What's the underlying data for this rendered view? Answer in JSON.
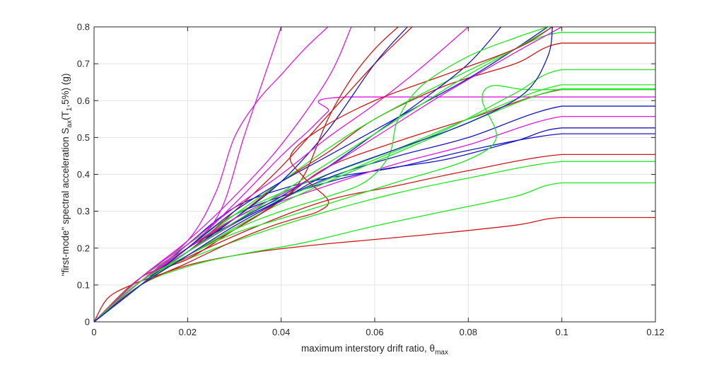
{
  "chart_data": {
    "type": "line",
    "xlabel": "maximum interstory drift ratio, θ",
    "xlabel_sub": "max",
    "ylabel_parts": [
      "\"first-mode\" spectral acceleration S",
      "ax",
      "(T",
      "1",
      ",5%) (g)"
    ],
    "xlim": [
      0,
      0.12
    ],
    "ylim": [
      0,
      0.8
    ],
    "xticks": [
      "0",
      "0.02",
      "0.04",
      "0.06",
      "0.08",
      "0.1",
      "0.12"
    ],
    "yticks": [
      "0",
      "0.1",
      "0.2",
      "0.3",
      "0.4",
      "0.5",
      "0.6",
      "0.7",
      "0.8"
    ],
    "grid": true,
    "colors": {
      "red": "#d01818",
      "green": "#1ee81e",
      "blue": "#1818c8",
      "magenta": "#e018e0",
      "grid": "#e3e3e3",
      "axis": "#262626"
    },
    "series": [
      {
        "color": "red",
        "x": [
          0,
          0.003,
          0.008,
          0.014,
          0.022,
          0.035,
          0.05,
          0.07,
          0.09,
          0.1,
          0.12
        ],
        "y": [
          0,
          0.065,
          0.1,
          0.128,
          0.16,
          0.19,
          0.212,
          0.235,
          0.262,
          0.283,
          0.283
        ]
      },
      {
        "color": "green",
        "x": [
          0,
          0.01,
          0.02,
          0.03,
          0.045,
          0.06,
          0.075,
          0.09,
          0.1,
          0.12
        ],
        "y": [
          0,
          0.1,
          0.15,
          0.18,
          0.215,
          0.26,
          0.3,
          0.34,
          0.377,
          0.377
        ]
      },
      {
        "color": "green",
        "x": [
          0,
          0.01,
          0.02,
          0.035,
          0.05,
          0.065,
          0.08,
          0.1,
          0.12
        ],
        "y": [
          0,
          0.11,
          0.17,
          0.24,
          0.3,
          0.35,
          0.39,
          0.435,
          0.435
        ]
      },
      {
        "color": "red",
        "x": [
          0,
          0.01,
          0.02,
          0.035,
          0.05,
          0.065,
          0.08,
          0.1,
          0.12
        ],
        "y": [
          0,
          0.11,
          0.175,
          0.26,
          0.33,
          0.37,
          0.41,
          0.454,
          0.454
        ]
      },
      {
        "color": "blue",
        "x": [
          0,
          0.01,
          0.02,
          0.03,
          0.04,
          0.05,
          0.065,
          0.08,
          0.1,
          0.12
        ],
        "y": [
          0,
          0.1,
          0.21,
          0.31,
          0.36,
          0.39,
          0.42,
          0.465,
          0.51,
          0.51
        ]
      },
      {
        "color": "blue",
        "x": [
          0,
          0.01,
          0.02,
          0.03,
          0.045,
          0.06,
          0.075,
          0.09,
          0.1,
          0.12
        ],
        "y": [
          0,
          0.1,
          0.2,
          0.29,
          0.36,
          0.41,
          0.44,
          0.49,
          0.526,
          0.526
        ]
      },
      {
        "color": "magenta",
        "x": [
          0,
          0.01,
          0.02,
          0.035,
          0.05,
          0.065,
          0.08,
          0.1,
          0.12
        ],
        "y": [
          0,
          0.11,
          0.19,
          0.3,
          0.37,
          0.43,
          0.48,
          0.557,
          0.557
        ]
      },
      {
        "color": "blue",
        "x": [
          0,
          0.01,
          0.02,
          0.035,
          0.05,
          0.065,
          0.08,
          0.1,
          0.12
        ],
        "y": [
          0,
          0.1,
          0.2,
          0.3,
          0.39,
          0.45,
          0.5,
          0.585,
          0.585
        ]
      },
      {
        "color": "magenta",
        "x": [
          0,
          0.01,
          0.02,
          0.03,
          0.04,
          0.046,
          0.05,
          0.054,
          0.12
        ],
        "y": [
          0,
          0.12,
          0.2,
          0.32,
          0.45,
          0.52,
          0.57,
          0.61,
          0.61
        ]
      },
      {
        "color": "red",
        "x": [
          0,
          0.01,
          0.02,
          0.03,
          0.04,
          0.05,
          0.065,
          0.08,
          0.1,
          0.12
        ],
        "y": [
          0,
          0.12,
          0.17,
          0.25,
          0.33,
          0.42,
          0.49,
          0.55,
          0.63,
          0.63
        ]
      },
      {
        "color": "green",
        "x": [
          0,
          0.01,
          0.02,
          0.035,
          0.05,
          0.065,
          0.08,
          0.1,
          0.12
        ],
        "y": [
          0,
          0.11,
          0.18,
          0.29,
          0.38,
          0.46,
          0.54,
          0.632,
          0.632
        ]
      },
      {
        "color": "green",
        "x": [
          0,
          0.01,
          0.02,
          0.03,
          0.04,
          0.05,
          0.065,
          0.08,
          0.1,
          0.12
        ],
        "y": [
          0,
          0.12,
          0.21,
          0.29,
          0.35,
          0.4,
          0.47,
          0.55,
          0.643,
          0.643
        ]
      },
      {
        "color": "green",
        "x": [
          0,
          0.01,
          0.02,
          0.03,
          0.045,
          0.06,
          0.075,
          0.09,
          0.1,
          0.12
        ],
        "y": [
          0,
          0.11,
          0.2,
          0.28,
          0.36,
          0.44,
          0.52,
          0.62,
          0.684,
          0.684
        ]
      },
      {
        "color": "red",
        "x": [
          0,
          0.01,
          0.02,
          0.03,
          0.04,
          0.05,
          0.06,
          0.075,
          0.09,
          0.1,
          0.12
        ],
        "y": [
          0,
          0.12,
          0.2,
          0.28,
          0.38,
          0.46,
          0.55,
          0.64,
          0.7,
          0.756,
          0.756
        ]
      },
      {
        "color": "green",
        "x": [
          0,
          0.01,
          0.02,
          0.03,
          0.04,
          0.05,
          0.06,
          0.075,
          0.09,
          0.1,
          0.12
        ],
        "y": [
          0,
          0.12,
          0.2,
          0.29,
          0.38,
          0.47,
          0.55,
          0.65,
          0.74,
          0.785,
          0.785
        ]
      },
      {
        "color": "magenta",
        "x": [
          0,
          0.01,
          0.02,
          0.026,
          0.03,
          0.035,
          0.04,
          0.045,
          0.05
        ],
        "y": [
          0,
          0.12,
          0.22,
          0.35,
          0.5,
          0.6,
          0.67,
          0.74,
          0.8
        ]
      },
      {
        "color": "magenta",
        "x": [
          0,
          0.01,
          0.02,
          0.027,
          0.032,
          0.036,
          0.04
        ],
        "y": [
          0,
          0.11,
          0.2,
          0.3,
          0.5,
          0.65,
          0.8
        ]
      },
      {
        "color": "magenta",
        "x": [
          0,
          0.01,
          0.02,
          0.03,
          0.04,
          0.05,
          0.055
        ],
        "y": [
          0,
          0.12,
          0.22,
          0.34,
          0.48,
          0.66,
          0.8
        ]
      },
      {
        "color": "red",
        "x": [
          0,
          0.01,
          0.02,
          0.03,
          0.04,
          0.05,
          0.06,
          0.068
        ],
        "y": [
          0,
          0.11,
          0.19,
          0.3,
          0.42,
          0.56,
          0.7,
          0.8
        ]
      },
      {
        "color": "blue",
        "x": [
          0,
          0.01,
          0.02,
          0.03,
          0.04,
          0.05,
          0.06,
          0.067
        ],
        "y": [
          0,
          0.1,
          0.19,
          0.28,
          0.38,
          0.52,
          0.7,
          0.8
        ]
      },
      {
        "color": "red",
        "x": [
          0,
          0.01,
          0.02,
          0.03,
          0.04,
          0.045,
          0.05,
          0.055,
          0.06,
          0.065
        ],
        "y": [
          0,
          0.1,
          0.18,
          0.25,
          0.33,
          0.4,
          0.55,
          0.66,
          0.74,
          0.8
        ]
      },
      {
        "color": "blue",
        "x": [
          0,
          0.01,
          0.02,
          0.03,
          0.04,
          0.05,
          0.06,
          0.07,
          0.08,
          0.087
        ],
        "y": [
          0,
          0.1,
          0.19,
          0.27,
          0.34,
          0.42,
          0.51,
          0.6,
          0.7,
          0.8
        ]
      },
      {
        "color": "magenta",
        "x": [
          0,
          0.01,
          0.02,
          0.03,
          0.04,
          0.05,
          0.06,
          0.07,
          0.08
        ],
        "y": [
          0,
          0.11,
          0.21,
          0.31,
          0.4,
          0.5,
          0.59,
          0.69,
          0.8
        ]
      },
      {
        "color": "magenta",
        "x": [
          0,
          0.01,
          0.02,
          0.03,
          0.045,
          0.06,
          0.075,
          0.09,
          0.1
        ],
        "y": [
          0,
          0.11,
          0.2,
          0.28,
          0.38,
          0.5,
          0.62,
          0.73,
          0.8
        ]
      },
      {
        "color": "blue",
        "x": [
          0,
          0.01,
          0.02,
          0.03,
          0.04,
          0.05,
          0.06,
          0.07,
          0.08,
          0.09,
          0.097
        ],
        "y": [
          0,
          0.1,
          0.2,
          0.3,
          0.38,
          0.45,
          0.52,
          0.59,
          0.66,
          0.74,
          0.8
        ]
      },
      {
        "color": "green",
        "x": [
          0,
          0.01,
          0.02,
          0.03,
          0.04,
          0.05,
          0.06,
          0.07,
          0.08,
          0.09,
          0.098
        ],
        "y": [
          0,
          0.1,
          0.19,
          0.27,
          0.35,
          0.43,
          0.51,
          0.59,
          0.67,
          0.74,
          0.8
        ]
      },
      {
        "color": "red",
        "x": [
          0,
          0.01,
          0.02,
          0.03,
          0.038,
          0.043,
          0.048,
          0.05,
          0.045,
          0.042,
          0.048,
          0.06,
          0.075,
          0.09,
          0.098
        ],
        "y": [
          0,
          0.1,
          0.16,
          0.22,
          0.26,
          0.28,
          0.3,
          0.33,
          0.39,
          0.45,
          0.52,
          0.6,
          0.67,
          0.74,
          0.8
        ]
      },
      {
        "color": "green",
        "x": [
          0,
          0.01,
          0.02,
          0.03,
          0.04,
          0.05,
          0.058,
          0.063,
          0.065,
          0.07,
          0.08,
          0.09,
          0.097
        ],
        "y": [
          0,
          0.1,
          0.18,
          0.25,
          0.3,
          0.34,
          0.38,
          0.45,
          0.55,
          0.64,
          0.72,
          0.77,
          0.8
        ]
      },
      {
        "color": "green",
        "x": [
          0,
          0.01,
          0.02,
          0.03,
          0.04,
          0.05,
          0.065,
          0.08,
          0.086,
          0.083,
          0.085,
          0.092,
          0.1,
          0.12
        ],
        "y": [
          0,
          0.11,
          0.18,
          0.24,
          0.28,
          0.32,
          0.38,
          0.44,
          0.5,
          0.6,
          0.64,
          0.63,
          0.63,
          0.63
        ]
      },
      {
        "color": "blue",
        "x": [
          0,
          0.01,
          0.02,
          0.03,
          0.04,
          0.05,
          0.065,
          0.08,
          0.092,
          0.097,
          0.098
        ],
        "y": [
          0,
          0.1,
          0.18,
          0.26,
          0.33,
          0.4,
          0.47,
          0.54,
          0.62,
          0.72,
          0.8
        ]
      }
    ]
  }
}
